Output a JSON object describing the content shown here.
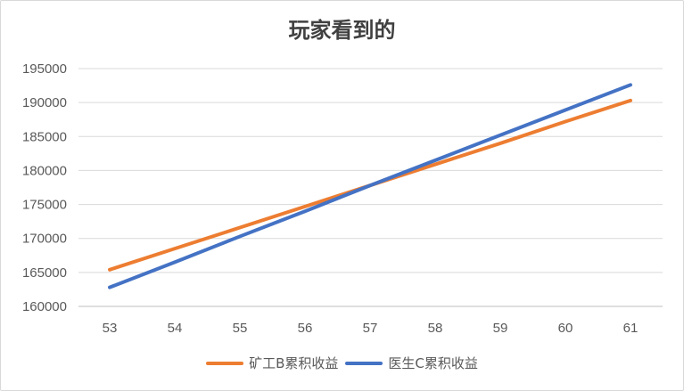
{
  "chart_data": {
    "type": "line",
    "title": "玩家看到的",
    "x": [
      53,
      54,
      55,
      56,
      57,
      58,
      59,
      60,
      61
    ],
    "x_tick_labels": [
      "53",
      "54",
      "55",
      "56",
      "57",
      "58",
      "59",
      "60",
      "61"
    ],
    "ylim": [
      160000,
      195000
    ],
    "y_ticks": [
      160000,
      165000,
      170000,
      175000,
      180000,
      185000,
      190000,
      195000
    ],
    "y_tick_labels": [
      "160000",
      "165000",
      "170000",
      "175000",
      "180000",
      "185000",
      "190000",
      "195000"
    ],
    "grid": true,
    "legend_position": "bottom",
    "series": [
      {
        "name": "矿工B累积收益",
        "color": "#ED7D31",
        "values": [
          165400,
          168500,
          171600,
          174700,
          177800,
          180900,
          184000,
          187200,
          190300
        ]
      },
      {
        "name": "医生C累积收益",
        "color": "#4472C4",
        "values": [
          162800,
          166500,
          170300,
          174000,
          177800,
          181500,
          185200,
          188900,
          192600
        ]
      }
    ]
  }
}
